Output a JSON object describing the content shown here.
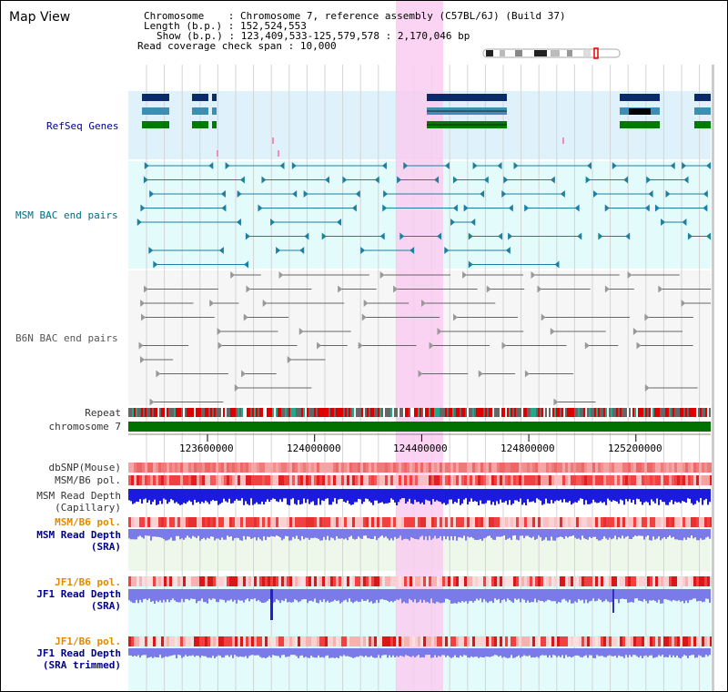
{
  "title": "Map View",
  "header": {
    "chromosome_label": "Chromosome",
    "chromosome_value": "Chromosome 7, reference assembly (C57BL/6J) (Build 37)",
    "length_label": "Length (b.p.)",
    "length_value": "152,524,553",
    "show_label": "Show (b.p.)",
    "show_value": "123,409,533-125,579,578 : 2,170,046 bp",
    "coverage_label": "Read coverage check span",
    "coverage_value": "10,000"
  },
  "tracks": {
    "refseq": "RefSeq Genes",
    "msm_bac": "MSM BAC end pairs",
    "b6n_bac": "B6N BAC end pairs",
    "repeat": "Repeat",
    "chromosome": "chromosome 7",
    "dbsnp": "dbSNP(Mouse)",
    "msm_b6_pol_1": "MSM/B6 pol.",
    "msm_read_depth_cap_1": "MSM Read Depth",
    "msm_read_depth_cap_2": "(Capillary)",
    "msm_b6_pol_2": "MSM/B6 pol.",
    "msm_read_depth_sra_1": "MSM Read Depth",
    "msm_read_depth_sra_2": "(SRA)",
    "jf1_b6_pol_1": "JF1/B6 pol.",
    "jf1_read_depth_sra_1": "JF1 Read Depth",
    "jf1_read_depth_sra_2": "(SRA)",
    "jf1_b6_pol_2": "JF1/B6 pol.",
    "jf1_read_depth_trim_1": "JF1 Read Depth",
    "jf1_read_depth_trim_2": "(SRA trimmed)"
  },
  "axis": {
    "ticks": [
      "123600000",
      "124000000",
      "124400000",
      "124800000",
      "125200000"
    ]
  },
  "colors": {
    "refseq_bg": "#dff2fb",
    "msm_bg": "#e4fbfb",
    "highlight": "#f9ccf0",
    "gene_navy": "#0a2a6a",
    "gene_teal": "#3e8eb4",
    "gene_green": "#007a00",
    "bac_teal": "#1f7fa0",
    "bac_gray": "#666666",
    "chrom_green": "#007200",
    "depth_blue": "#1a1ae0",
    "depth_light": "#7a7ae8",
    "pol_red": "#ee3333"
  }
}
